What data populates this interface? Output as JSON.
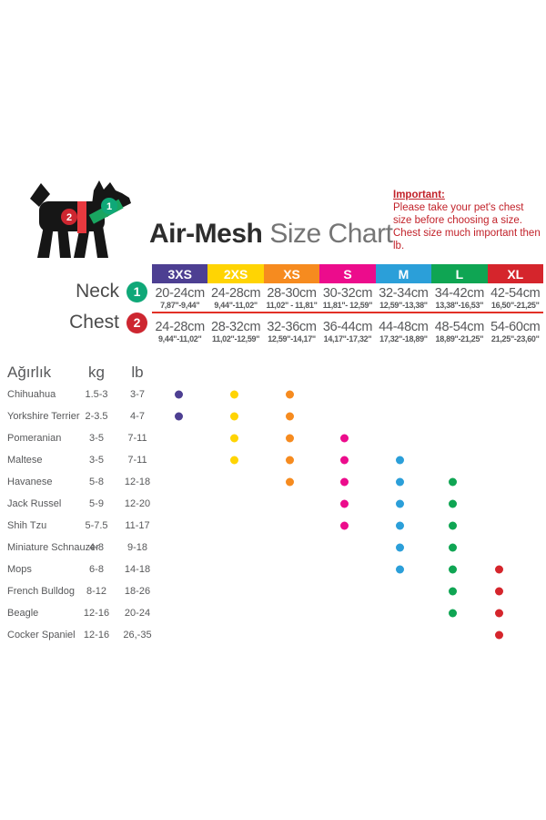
{
  "header": {
    "title_bold": "Air-Mesh",
    "title_light": "Size Chart",
    "important_title": "Important:",
    "important_body": "Please take your pet's chest size before choosing a size. Chest size much important then lb."
  },
  "size_chart": {
    "neck_label": "Neck",
    "chest_label": "Chest",
    "neck_badge": "1",
    "chest_badge": "2",
    "sizes": [
      {
        "label": "3XS",
        "color": "#4d3f92",
        "text_color": "#ffffff",
        "neck_cm": "20-24cm",
        "neck_in": "7,87\"-9,44\"",
        "chest_cm": "24-28cm",
        "chest_in": "9,44\"-11,02\""
      },
      {
        "label": "2XS",
        "color": "#ffd403",
        "text_color": "#ffffff",
        "neck_cm": "24-28cm",
        "neck_in": "9,44\"-11,02\"",
        "chest_cm": "28-32cm",
        "chest_in": "11,02\"-12,59\""
      },
      {
        "label": "XS",
        "color": "#f68b1f",
        "text_color": "#ffffff",
        "neck_cm": "28-30cm",
        "neck_in": "11,02\" - 11,81\"",
        "chest_cm": "32-36cm",
        "chest_in": "12,59\"-14,17\""
      },
      {
        "label": "S",
        "color": "#ec0c8c",
        "text_color": "#ffffff",
        "neck_cm": "30-32cm",
        "neck_in": "11,81\"- 12,59\"",
        "chest_cm": "36-44cm",
        "chest_in": "14,17\"-17,32\""
      },
      {
        "label": "M",
        "color": "#2b9fd9",
        "text_color": "#ffffff",
        "neck_cm": "32-34cm",
        "neck_in": "12,59\"-13,38\"",
        "chest_cm": "44-48cm",
        "chest_in": "17,32\"-18,89\""
      },
      {
        "label": "L",
        "color": "#0fa553",
        "text_color": "#ffffff",
        "neck_cm": "34-42cm",
        "neck_in": "13,38\"-16,53\"",
        "chest_cm": "48-54cm",
        "chest_in": "18,89\"-21,25\""
      },
      {
        "label": "XL",
        "color": "#d5252c",
        "text_color": "#ffffff",
        "neck_cm": "42-54cm",
        "neck_in": "16,50\"-21,25\"",
        "chest_cm": "54-60cm",
        "chest_in": "21,25\"-23,60\""
      }
    ]
  },
  "breed_table": {
    "weight_header": "Ağırlık",
    "kg_header": "kg",
    "lb_header": "lb",
    "rows": [
      {
        "breed": "Chihuahua",
        "kg": "1.5-3",
        "lb": "3-7",
        "sizes": [
          "3XS",
          "2XS",
          "XS"
        ]
      },
      {
        "breed": "Yorkshire Terrier",
        "kg": "2-3.5",
        "lb": "4-7",
        "sizes": [
          "3XS",
          "2XS",
          "XS"
        ]
      },
      {
        "breed": "Pomeranian",
        "kg": "3-5",
        "lb": "7-11",
        "sizes": [
          "2XS",
          "XS",
          "S"
        ]
      },
      {
        "breed": "Maltese",
        "kg": "3-5",
        "lb": "7-11",
        "sizes": [
          "2XS",
          "XS",
          "S",
          "M"
        ]
      },
      {
        "breed": "Havanese",
        "kg": "5-8",
        "lb": "12-18",
        "sizes": [
          "XS",
          "S",
          "M",
          "L"
        ]
      },
      {
        "breed": "Jack Russel",
        "kg": "5-9",
        "lb": "12-20",
        "sizes": [
          "S",
          "M",
          "L"
        ]
      },
      {
        "breed": "Shih Tzu",
        "kg": "5-7.5",
        "lb": "11-17",
        "sizes": [
          "S",
          "M",
          "L"
        ]
      },
      {
        "breed": "Miniature Schnauzer",
        "kg": "4-8",
        "lb": "9-18",
        "sizes": [
          "M",
          "L"
        ]
      },
      {
        "breed": "Mops",
        "kg": "6-8",
        "lb": "14-18",
        "sizes": [
          "M",
          "L",
          "XL"
        ]
      },
      {
        "breed": "French Bulldog",
        "kg": "8-12",
        "lb": "18-26",
        "sizes": [
          "L",
          "XL"
        ]
      },
      {
        "breed": "Beagle",
        "kg": "12-16",
        "lb": "20-24",
        "sizes": [
          "L",
          "XL"
        ]
      },
      {
        "breed": "Cocker Spaniel",
        "kg": "12-16",
        "lb": "26,-35",
        "sizes": [
          "XL"
        ]
      }
    ]
  },
  "chart_data": {
    "type": "table",
    "title": "Air-Mesh Size Chart",
    "sizes": [
      "3XS",
      "2XS",
      "XS",
      "S",
      "M",
      "L",
      "XL"
    ],
    "neck_cm": [
      "20-24",
      "24-28",
      "28-30",
      "30-32",
      "32-34",
      "34-42",
      "42-54"
    ],
    "neck_inches": [
      "7,87-9,44",
      "9,44-11,02",
      "11,02-11,81",
      "11,81-12,59",
      "12,59-13,38",
      "13,38-16,53",
      "16,50-21,25"
    ],
    "chest_cm": [
      "24-28",
      "28-32",
      "32-36",
      "36-44",
      "44-48",
      "48-54",
      "54-60"
    ],
    "chest_inches": [
      "9,44-11,02",
      "11,02-12,59",
      "12,59-14,17",
      "14,17-17,32",
      "17,32-18,89",
      "18,89-21,25",
      "21,25-23,60"
    ],
    "size_colors": [
      "#4d3f92",
      "#ffd403",
      "#f68b1f",
      "#ec0c8c",
      "#2b9fd9",
      "#0fa553",
      "#d5252c"
    ],
    "breed_recommendations": [
      {
        "breed": "Chihuahua",
        "kg": "1.5-3",
        "lb": "3-7",
        "sizes": [
          "3XS",
          "2XS",
          "XS"
        ]
      },
      {
        "breed": "Yorkshire Terrier",
        "kg": "2-3.5",
        "lb": "4-7",
        "sizes": [
          "3XS",
          "2XS",
          "XS"
        ]
      },
      {
        "breed": "Pomeranian",
        "kg": "3-5",
        "lb": "7-11",
        "sizes": [
          "2XS",
          "XS",
          "S"
        ]
      },
      {
        "breed": "Maltese",
        "kg": "3-5",
        "lb": "7-11",
        "sizes": [
          "2XS",
          "XS",
          "S",
          "M"
        ]
      },
      {
        "breed": "Havanese",
        "kg": "5-8",
        "lb": "12-18",
        "sizes": [
          "XS",
          "S",
          "M",
          "L"
        ]
      },
      {
        "breed": "Jack Russel",
        "kg": "5-9",
        "lb": "12-20",
        "sizes": [
          "S",
          "M",
          "L"
        ]
      },
      {
        "breed": "Shih Tzu",
        "kg": "5-7.5",
        "lb": "11-17",
        "sizes": [
          "S",
          "M",
          "L"
        ]
      },
      {
        "breed": "Miniature Schnauzer",
        "kg": "4-8",
        "lb": "9-18",
        "sizes": [
          "M",
          "L"
        ]
      },
      {
        "breed": "Mops",
        "kg": "6-8",
        "lb": "14-18",
        "sizes": [
          "M",
          "L",
          "XL"
        ]
      },
      {
        "breed": "French Bulldog",
        "kg": "8-12",
        "lb": "18-26",
        "sizes": [
          "L",
          "XL"
        ]
      },
      {
        "breed": "Beagle",
        "kg": "12-16",
        "lb": "20-24",
        "sizes": [
          "L",
          "XL"
        ]
      },
      {
        "breed": "Cocker Spaniel",
        "kg": "12-16",
        "lb": "26,-35",
        "sizes": [
          "XL"
        ]
      }
    ]
  }
}
